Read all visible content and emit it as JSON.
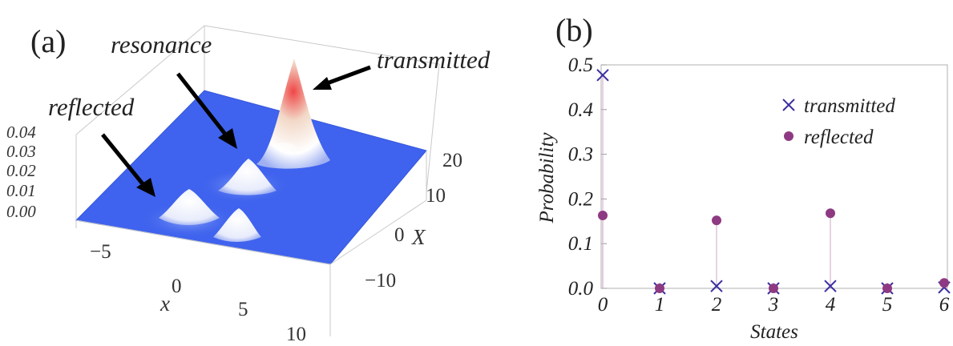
{
  "panel_a": {
    "label": "(a)",
    "annotations": {
      "resonance": "resonance",
      "transmitted": "transmitted",
      "reflected": "reflected"
    },
    "z_ticks": [
      "0.00",
      "0.01",
      "0.02",
      "0.03",
      "0.04"
    ],
    "x_ticks": [
      "−5",
      "0",
      "5",
      "10"
    ],
    "X_ticks": [
      "−10",
      "0",
      "10",
      "20"
    ],
    "x_label": "x",
    "X_label": "X",
    "colors": {
      "plane": "#3f63ee",
      "peak_top": "#ef4747",
      "peak_mid": "#ffffff"
    }
  },
  "chart_data": [
    {
      "type": "surface",
      "zlim": [
        0.0,
        0.04
      ],
      "xlim": [
        -8,
        10
      ],
      "Xlim": [
        -20,
        20
      ],
      "features": [
        "resonance",
        "transmitted",
        "reflected"
      ]
    },
    {
      "type": "scatter",
      "label": "(b)",
      "xlabel": "States",
      "ylabel": "Probability",
      "xlim": [
        0,
        6
      ],
      "ylim": [
        0,
        0.5
      ],
      "x_ticks": [
        "0",
        "1",
        "2",
        "3",
        "4",
        "5",
        "6"
      ],
      "y_ticks": [
        "0.0",
        "0.1",
        "0.2",
        "0.3",
        "0.4",
        "0.5"
      ],
      "legend_position": "top-right",
      "series": [
        {
          "name": "transmitted",
          "marker": "cross",
          "color": "#3b2fa0",
          "x": [
            0,
            1,
            2,
            3,
            4,
            5,
            6
          ],
          "values": [
            0.477,
            0.0,
            0.005,
            0.0,
            0.005,
            0.0,
            0.002
          ]
        },
        {
          "name": "reflected",
          "marker": "dot",
          "color": "#8e3a82",
          "x": [
            0,
            1,
            2,
            3,
            4,
            5,
            6
          ],
          "values": [
            0.163,
            0.0,
            0.152,
            0.0,
            0.168,
            0.0,
            0.012
          ]
        }
      ]
    }
  ]
}
